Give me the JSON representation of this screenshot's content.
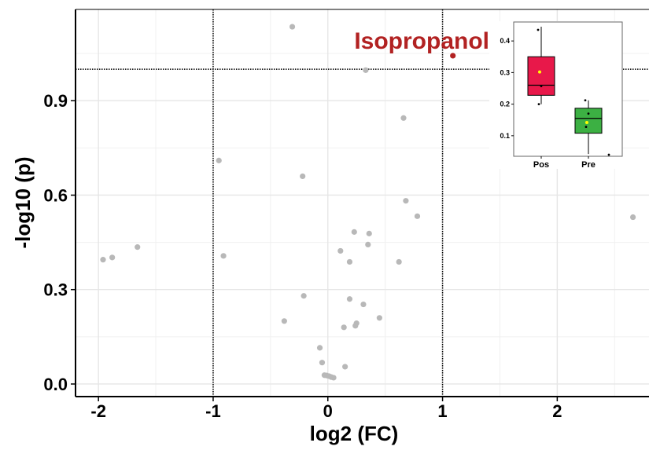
{
  "chart_data": [
    {
      "type": "scatter",
      "title": "",
      "xlabel": "log2 (FC)",
      "ylabel": "-log10 (p)",
      "xlim": [
        -2.2,
        2.8
      ],
      "ylim": [
        -0.04,
        1.19
      ],
      "x_ticks": [
        -2,
        -1,
        0,
        1,
        2
      ],
      "x_tick_labels": [
        "-2",
        "-1",
        "0",
        "1",
        "2"
      ],
      "y_ticks": [
        0.0,
        0.3,
        0.6,
        0.9
      ],
      "y_tick_labels": [
        "0.0",
        "0.3",
        "0.6",
        "0.9"
      ],
      "grid": true,
      "thresholds": {
        "x": [
          -1,
          1
        ],
        "y": 1.0
      },
      "colors": {
        "background_point": "#b8b8b8",
        "highlight": "#b22222"
      },
      "points": [
        {
          "x": -1.96,
          "y": 0.395
        },
        {
          "x": -1.88,
          "y": 0.402
        },
        {
          "x": -1.66,
          "y": 0.435
        },
        {
          "x": -0.95,
          "y": 0.71
        },
        {
          "x": -0.91,
          "y": 0.407
        },
        {
          "x": -0.31,
          "y": 1.135
        },
        {
          "x": -0.22,
          "y": 0.66
        },
        {
          "x": -0.21,
          "y": 0.28
        },
        {
          "x": -0.38,
          "y": 0.2
        },
        {
          "x": -0.07,
          "y": 0.115
        },
        {
          "x": -0.05,
          "y": 0.068
        },
        {
          "x": -0.03,
          "y": 0.028
        },
        {
          "x": -0.01,
          "y": 0.027
        },
        {
          "x": 0.01,
          "y": 0.025
        },
        {
          "x": 0.03,
          "y": 0.022
        },
        {
          "x": 0.05,
          "y": 0.02
        },
        {
          "x": 0.11,
          "y": 0.423
        },
        {
          "x": 0.14,
          "y": 0.18
        },
        {
          "x": 0.15,
          "y": 0.055
        },
        {
          "x": 0.19,
          "y": 0.388
        },
        {
          "x": 0.19,
          "y": 0.27
        },
        {
          "x": 0.23,
          "y": 0.483
        },
        {
          "x": 0.24,
          "y": 0.185
        },
        {
          "x": 0.25,
          "y": 0.193
        },
        {
          "x": 0.31,
          "y": 0.253
        },
        {
          "x": 0.35,
          "y": 0.443
        },
        {
          "x": 0.36,
          "y": 0.478
        },
        {
          "x": 0.33,
          "y": 0.997
        },
        {
          "x": 0.45,
          "y": 0.21
        },
        {
          "x": 0.62,
          "y": 0.388
        },
        {
          "x": 0.66,
          "y": 0.845
        },
        {
          "x": 0.68,
          "y": 0.582
        },
        {
          "x": 0.78,
          "y": 0.533
        },
        {
          "x": 2.66,
          "y": 0.53
        }
      ],
      "highlight": {
        "x": 1.09,
        "y": 1.043,
        "label": "Isopropanol"
      }
    },
    {
      "type": "box",
      "title": "",
      "categories": [
        "Pos",
        "Pre"
      ],
      "ylim": [
        0.035,
        0.46
      ],
      "y_ticks": [
        0.1,
        0.2,
        0.3,
        0.4
      ],
      "y_tick_labels": [
        "0.1",
        "0.2",
        "0.3",
        "0.4"
      ],
      "boxes": [
        {
          "name": "Pos",
          "min": 0.2,
          "q1": 0.228,
          "median": 0.26,
          "q3": 0.35,
          "max": 0.445,
          "mean": 0.302,
          "points": [
            0.435,
            0.257,
            0.2
          ],
          "color": "#e8184a"
        },
        {
          "name": "Pre",
          "min": 0.042,
          "q1": 0.108,
          "median": 0.155,
          "q3": 0.187,
          "max": 0.212,
          "mean": 0.142,
          "points": [
            0.212,
            0.17,
            0.128,
            0.04
          ],
          "color": "#3cb043"
        }
      ],
      "colors": {
        "mean_marker": "#ffff00"
      }
    }
  ]
}
